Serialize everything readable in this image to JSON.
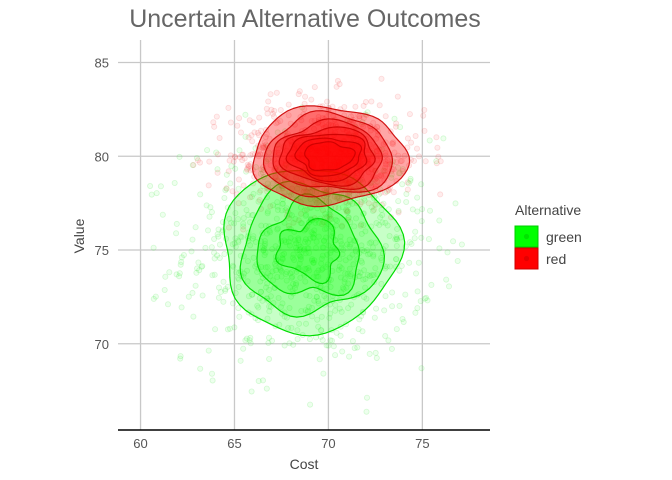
{
  "chart_data": {
    "type": "scatter",
    "title": "Uncertain Alternative Outcomes",
    "xlabel": "Cost",
    "ylabel": "Value",
    "xlim": [
      58.8,
      78.6
    ],
    "ylim": [
      65.4,
      86.2
    ],
    "x_ticks": [
      60,
      65,
      70,
      75
    ],
    "y_ticks": [
      70,
      75,
      80,
      85
    ],
    "grid": true,
    "legend": {
      "title": "Alternative",
      "position": "right"
    },
    "overlays": [
      "scatter points",
      "2d density contours (filled)"
    ],
    "series": [
      {
        "name": "green",
        "color": "#00ff00",
        "center": {
          "x": 69.0,
          "y": 75.0
        },
        "spread": {
          "x": 3.3,
          "y": 3.0
        },
        "n_points": 850,
        "x_range": [
          59.8,
          78.0
        ],
        "y_range": [
          66.3,
          84.0
        ]
      },
      {
        "name": "red",
        "color": "#ff0000",
        "center": {
          "x": 70.0,
          "y": 80.0
        },
        "spread": {
          "x": 2.6,
          "y": 1.6
        },
        "n_points": 600,
        "x_range": [
          62.8,
          77.0
        ],
        "y_range": [
          76.0,
          85.3
        ]
      }
    ]
  }
}
